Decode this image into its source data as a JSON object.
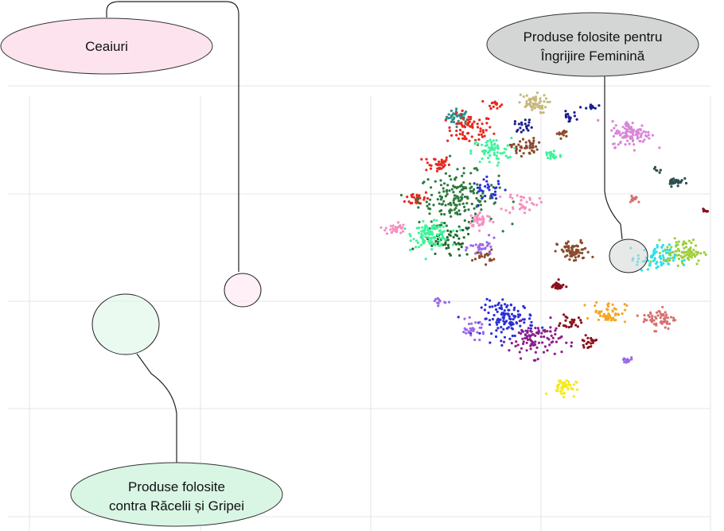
{
  "chart_data": {
    "type": "scatter",
    "title": "",
    "xlabel": "",
    "ylabel": "",
    "grid": true,
    "legend": "none",
    "annotations": [
      {
        "id": "ceaiuri",
        "lines": [
          "Ceaiuri"
        ],
        "fill": "#fde3ee",
        "target_color": "#f58fc0"
      },
      {
        "id": "ingrijire",
        "lines": [
          "Produse folosite pentru",
          "Îngrijire Feminină"
        ],
        "fill": "#d4d6d6",
        "target_color": "#2f4f4f"
      },
      {
        "id": "raceala",
        "lines": [
          "Produse folosite",
          "contra Răcelii și Gripei"
        ],
        "fill": "#d9f5e4",
        "target_color": "#3cf59a"
      }
    ],
    "clusters": [
      {
        "color": "#2b8f8c",
        "cx": 0.32,
        "cy": 0.86,
        "spread": 0.018,
        "n": 40
      },
      {
        "color": "#e8271c",
        "cx": 0.36,
        "cy": 0.8,
        "spread": 0.035,
        "n": 70
      },
      {
        "color": "#e8271c",
        "cx": 0.24,
        "cy": 0.64,
        "spread": 0.02,
        "n": 35
      },
      {
        "color": "#e8271c",
        "cx": 0.17,
        "cy": 0.48,
        "spread": 0.018,
        "n": 30
      },
      {
        "color": "#e8271c",
        "cx": 0.45,
        "cy": 0.92,
        "spread": 0.01,
        "n": 15
      },
      {
        "color": "#2d7a3d",
        "cx": 0.32,
        "cy": 0.48,
        "spread": 0.06,
        "n": 180
      },
      {
        "color": "#1f6b2e",
        "cx": 0.28,
        "cy": 0.28,
        "spread": 0.04,
        "n": 60
      },
      {
        "color": "#3cf59a",
        "cx": 0.22,
        "cy": 0.31,
        "spread": 0.028,
        "n": 120
      },
      {
        "color": "#3cf59a",
        "cx": 0.44,
        "cy": 0.7,
        "spread": 0.03,
        "n": 60
      },
      {
        "color": "#3cf59a",
        "cx": 0.66,
        "cy": 0.68,
        "spread": 0.015,
        "n": 25
      },
      {
        "color": "#f58fc0",
        "cx": 0.4,
        "cy": 0.38,
        "spread": 0.018,
        "n": 40
      },
      {
        "color": "#f58fc0",
        "cx": 0.09,
        "cy": 0.34,
        "spread": 0.015,
        "n": 30
      },
      {
        "color": "#f58fc0",
        "cx": 0.55,
        "cy": 0.46,
        "spread": 0.025,
        "n": 35
      },
      {
        "color": "#c7b87a",
        "cx": 0.59,
        "cy": 0.92,
        "spread": 0.022,
        "n": 55
      },
      {
        "color": "#8b4a2b",
        "cx": 0.56,
        "cy": 0.72,
        "spread": 0.02,
        "n": 45
      },
      {
        "color": "#8b4a2b",
        "cx": 0.74,
        "cy": 0.23,
        "spread": 0.025,
        "n": 70
      },
      {
        "color": "#8b4a2b",
        "cx": 0.41,
        "cy": 0.21,
        "spread": 0.015,
        "n": 20
      },
      {
        "color": "#8b4a2b",
        "cx": 0.7,
        "cy": 0.78,
        "spread": 0.01,
        "n": 12
      },
      {
        "color": "#1b1f8f",
        "cx": 0.56,
        "cy": 0.82,
        "spread": 0.015,
        "n": 20
      },
      {
        "color": "#1b1f8f",
        "cx": 0.72,
        "cy": 0.86,
        "spread": 0.012,
        "n": 15
      },
      {
        "color": "#1b1f8f",
        "cx": 0.8,
        "cy": 0.9,
        "spread": 0.01,
        "n": 12
      },
      {
        "color": "#2a2fd8",
        "cx": 0.5,
        "cy": -0.08,
        "spread": 0.04,
        "n": 120
      },
      {
        "color": "#2a2fd8",
        "cx": 0.43,
        "cy": 0.52,
        "spread": 0.025,
        "n": 30
      },
      {
        "color": "#8c1f8c",
        "cx": 0.6,
        "cy": -0.18,
        "spread": 0.04,
        "n": 100
      },
      {
        "color": "#9b6ae8",
        "cx": 0.37,
        "cy": -0.13,
        "spread": 0.02,
        "n": 30
      },
      {
        "color": "#9b6ae8",
        "cx": 0.41,
        "cy": 0.25,
        "spread": 0.02,
        "n": 30
      },
      {
        "color": "#9b6ae8",
        "cx": 0.93,
        "cy": -0.28,
        "spread": 0.01,
        "n": 15
      },
      {
        "color": "#9b6ae8",
        "cx": 0.25,
        "cy": 0.0,
        "spread": 0.01,
        "n": 12
      },
      {
        "color": "#8b0f1a",
        "cx": 0.68,
        "cy": 0.07,
        "spread": 0.012,
        "n": 25
      },
      {
        "color": "#8b0f1a",
        "cx": 0.73,
        "cy": -0.1,
        "spread": 0.015,
        "n": 25
      },
      {
        "color": "#8b0f1a",
        "cx": 0.79,
        "cy": -0.19,
        "spread": 0.012,
        "n": 20
      },
      {
        "color": "#8b0f1a",
        "cx": 1.22,
        "cy": 0.42,
        "spread": 0.006,
        "n": 6
      },
      {
        "color": "#f5a623",
        "cx": 0.87,
        "cy": -0.05,
        "spread": 0.025,
        "n": 50
      },
      {
        "color": "#f5ea16",
        "cx": 0.7,
        "cy": -0.4,
        "spread": 0.02,
        "n": 45
      },
      {
        "color": "#2be0e8",
        "cx": 1.04,
        "cy": 0.2,
        "spread": 0.03,
        "n": 80
      },
      {
        "color": "#9ecf3a",
        "cx": 1.14,
        "cy": 0.23,
        "spread": 0.03,
        "n": 80
      },
      {
        "color": "#d97070",
        "cx": 1.05,
        "cy": -0.08,
        "spread": 0.025,
        "n": 60
      },
      {
        "color": "#d97070",
        "cx": 0.96,
        "cy": 0.48,
        "spread": 0.01,
        "n": 12
      },
      {
        "color": "#d986d9",
        "cx": 0.95,
        "cy": 0.78,
        "spread": 0.03,
        "n": 110
      },
      {
        "color": "#2f4f4f",
        "cx": 1.11,
        "cy": 0.56,
        "spread": 0.012,
        "n": 30
      },
      {
        "color": "#2f4f4f",
        "cx": 1.04,
        "cy": 0.61,
        "spread": 0.006,
        "n": 6
      }
    ]
  }
}
